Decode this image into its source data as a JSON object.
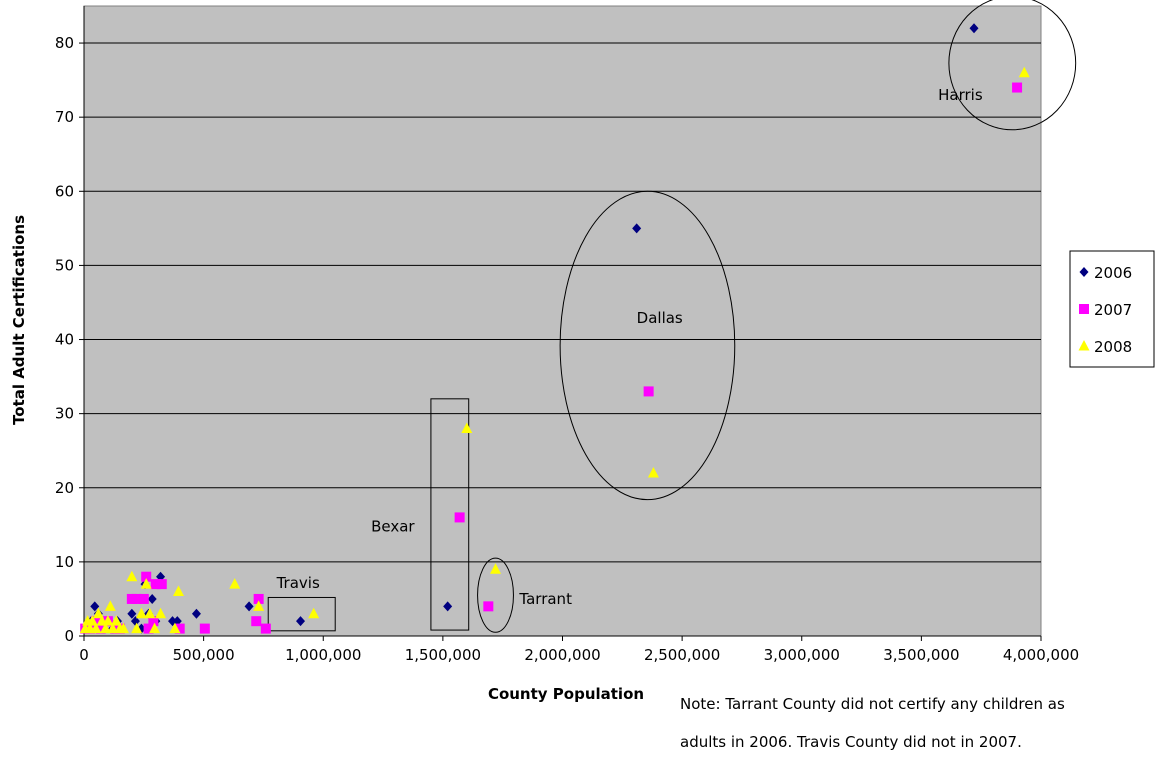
{
  "chart_data": {
    "type": "scatter",
    "title": "",
    "xlabel": "County Population",
    "ylabel": "Total Adult Certifications",
    "xlim": [
      0,
      4000000
    ],
    "ylim": [
      0,
      85
    ],
    "x_ticks": [
      0,
      500000,
      1000000,
      1500000,
      2000000,
      2500000,
      3000000,
      3500000,
      4000000
    ],
    "x_tick_labels": [
      "0",
      "500,000",
      "1,000,000",
      "1,500,000",
      "2,000,000",
      "2,500,000",
      "3,000,000",
      "3,500,000",
      "4,000,000"
    ],
    "y_ticks": [
      0,
      10,
      20,
      30,
      40,
      50,
      60,
      70,
      80
    ],
    "y_tick_labels": [
      "0",
      "10",
      "20",
      "30",
      "40",
      "50",
      "60",
      "70",
      "80"
    ],
    "grid": true,
    "plot_background": "#c0c0c0",
    "legend_position": "right",
    "series": [
      {
        "name": "2006",
        "marker": "diamond",
        "color": "#000080",
        "points": [
          [
            10000,
            1
          ],
          [
            20000,
            1
          ],
          [
            30000,
            2
          ],
          [
            45000,
            4
          ],
          [
            60000,
            3
          ],
          [
            80000,
            1
          ],
          [
            100000,
            2
          ],
          [
            120000,
            1
          ],
          [
            140000,
            2
          ],
          [
            200000,
            3
          ],
          [
            215000,
            2
          ],
          [
            240000,
            1
          ],
          [
            255000,
            7
          ],
          [
            270000,
            3
          ],
          [
            285000,
            5
          ],
          [
            300000,
            2
          ],
          [
            320000,
            8
          ],
          [
            370000,
            2
          ],
          [
            390000,
            2
          ],
          [
            470000,
            3
          ],
          [
            690000,
            4
          ],
          [
            905000,
            2
          ],
          [
            1520000,
            4
          ],
          [
            2310000,
            55
          ],
          [
            3720000,
            82
          ]
        ]
      },
      {
        "name": "2007",
        "marker": "square",
        "color": "#ff00ff",
        "points": [
          [
            5000,
            1
          ],
          [
            25000,
            1
          ],
          [
            50000,
            2
          ],
          [
            70000,
            1
          ],
          [
            100000,
            2
          ],
          [
            130000,
            1
          ],
          [
            150000,
            1
          ],
          [
            200000,
            5
          ],
          [
            220000,
            5
          ],
          [
            250000,
            5
          ],
          [
            260000,
            8
          ],
          [
            270000,
            1
          ],
          [
            290000,
            2
          ],
          [
            300000,
            7
          ],
          [
            325000,
            7
          ],
          [
            400000,
            1
          ],
          [
            505000,
            1
          ],
          [
            720000,
            2
          ],
          [
            730000,
            5
          ],
          [
            760000,
            1
          ],
          [
            1570000,
            16
          ],
          [
            1690000,
            4
          ],
          [
            2360000,
            33
          ],
          [
            3900000,
            74
          ]
        ]
      },
      {
        "name": "2008",
        "marker": "triangle",
        "color": "#ffff00",
        "points": [
          [
            5000,
            1
          ],
          [
            15000,
            2
          ],
          [
            25000,
            1
          ],
          [
            35000,
            2
          ],
          [
            50000,
            1
          ],
          [
            60000,
            3
          ],
          [
            75000,
            2
          ],
          [
            90000,
            1
          ],
          [
            100000,
            2
          ],
          [
            110000,
            4
          ],
          [
            120000,
            1
          ],
          [
            135000,
            2
          ],
          [
            150000,
            1
          ],
          [
            165000,
            1
          ],
          [
            200000,
            8
          ],
          [
            220000,
            1
          ],
          [
            240000,
            3
          ],
          [
            260000,
            7
          ],
          [
            275000,
            3
          ],
          [
            295000,
            1
          ],
          [
            320000,
            3
          ],
          [
            380000,
            1
          ],
          [
            395000,
            6
          ],
          [
            630000,
            7
          ],
          [
            730000,
            4
          ],
          [
            960000,
            3
          ],
          [
            1600000,
            28
          ],
          [
            1720000,
            9
          ],
          [
            2380000,
            22
          ],
          [
            3930000,
            76
          ]
        ]
      }
    ],
    "annotations": [
      {
        "text": "Harris",
        "x": 3570000,
        "y": 72.3,
        "shape": "ellipse",
        "shape_cx": 3880000,
        "shape_cy": 77.3,
        "shape_rx": 265000,
        "shape_ry": 9
      },
      {
        "text": "Dallas",
        "x": 2310000,
        "y": 42.2,
        "shape": "ellipse",
        "shape_cx": 2355000,
        "shape_cy": 39.2,
        "shape_rx": 365000,
        "shape_ry": 20.8
      },
      {
        "text": "Bexar",
        "x": 1200000,
        "y": 14.1,
        "shape": "rect",
        "shape_x0": 1450000,
        "shape_x1": 1608000,
        "shape_y0": 0.8,
        "shape_y1": 32
      },
      {
        "text": "Tarrant",
        "x": 1820000,
        "y": 4.3,
        "shape": "ellipse",
        "shape_cx": 1720000,
        "shape_cy": 5.5,
        "shape_rx": 75000,
        "shape_ry": 5
      },
      {
        "text": "Travis",
        "x": 805000,
        "y": 6.5,
        "shape": "rect",
        "shape_x0": 770000,
        "shape_x1": 1050000,
        "shape_y0": 0.7,
        "shape_y1": 5.2
      }
    ]
  },
  "note": {
    "line1": "Note: Tarrant County did not certify any children as",
    "line2": "adults in 2006.  Travis County did not in 2007."
  }
}
